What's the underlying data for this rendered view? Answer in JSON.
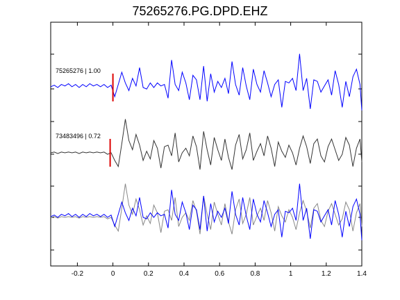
{
  "chart_data": {
    "type": "line",
    "title": "75265276.PG.DPD.EHZ",
    "xlabel": "",
    "ylabel": "",
    "xlim": [
      -0.35,
      1.4
    ],
    "xticks": [
      -0.2,
      0,
      0.2,
      0.4,
      0.6,
      0.8,
      1,
      1.2,
      1.4
    ],
    "xtick_labels": [
      "-0.2",
      "0",
      "0.2",
      "0.4",
      "0.6",
      "0.8",
      "1",
      "1.2",
      "1.4"
    ],
    "pick_time": 0,
    "grid": false,
    "traces": [
      {
        "label": "75265276 | 1.00",
        "color": "#0000ff",
        "x": [
          -0.35,
          -0.33,
          -0.31,
          -0.29,
          -0.27,
          -0.25,
          -0.23,
          -0.21,
          -0.19,
          -0.17,
          -0.15,
          -0.13,
          -0.11,
          -0.09,
          -0.07,
          -0.05,
          -0.03,
          -0.01,
          0.01,
          0.03,
          0.05,
          0.07,
          0.09,
          0.11,
          0.13,
          0.15,
          0.17,
          0.19,
          0.21,
          0.23,
          0.25,
          0.27,
          0.29,
          0.31,
          0.33,
          0.35,
          0.37,
          0.39,
          0.41,
          0.43,
          0.45,
          0.47,
          0.49,
          0.51,
          0.53,
          0.55,
          0.57,
          0.59,
          0.61,
          0.63,
          0.65,
          0.67,
          0.69,
          0.71,
          0.73,
          0.75,
          0.77,
          0.79,
          0.81,
          0.83,
          0.85,
          0.87,
          0.89,
          0.91,
          0.93,
          0.95,
          0.97,
          0.99,
          1.01,
          1.03,
          1.05,
          1.07,
          1.09,
          1.11,
          1.13,
          1.15,
          1.17,
          1.19,
          1.21,
          1.23,
          1.25,
          1.27,
          1.29,
          1.31,
          1.33,
          1.35,
          1.37,
          1.39,
          1.4
        ],
        "y": [
          0.05,
          0.15,
          0.0,
          0.2,
          0.1,
          0.25,
          0.05,
          0.2,
          0.0,
          0.2,
          0.05,
          0.25,
          0.1,
          0.2,
          0.05,
          0.2,
          0.0,
          0.15,
          -0.6,
          0.2,
          1.0,
          0.3,
          -0.2,
          0.6,
          0.1,
          1.3,
          0.0,
          -0.1,
          0.3,
          0.0,
          0.3,
          0.1,
          0.2,
          -0.7,
          1.8,
          0.2,
          -0.2,
          1.0,
          0.3,
          -0.8,
          0.8,
          0.5,
          -0.8,
          1.4,
          -0.9,
          0.9,
          -0.3,
          0.4,
          0.0,
          0.6,
          -0.4,
          1.7,
          0.2,
          -0.5,
          1.3,
          0.1,
          -0.8,
          1.2,
          0.2,
          -0.3,
          1.1,
          0.3,
          -0.6,
          0.2,
          0.5,
          -1.3,
          0.4,
          0.3,
          0.6,
          -0.2,
          2.2,
          -0.2,
          0.6,
          -1.4,
          0.5,
          0.4,
          -0.3,
          0.1,
          0.5,
          -0.5,
          1.1,
          0.2,
          -1.3,
          0.4,
          -0.6,
          0.7,
          1.2,
          0.2,
          -1.5
        ]
      },
      {
        "label": "73483496 | 0.72",
        "color": "#333333",
        "x": [
          -0.35,
          -0.33,
          -0.31,
          -0.29,
          -0.27,
          -0.25,
          -0.23,
          -0.21,
          -0.19,
          -0.17,
          -0.15,
          -0.13,
          -0.11,
          -0.09,
          -0.07,
          -0.05,
          -0.03,
          -0.01,
          0.01,
          0.03,
          0.05,
          0.07,
          0.09,
          0.11,
          0.13,
          0.15,
          0.17,
          0.19,
          0.21,
          0.23,
          0.25,
          0.27,
          0.29,
          0.31,
          0.33,
          0.35,
          0.37,
          0.39,
          0.41,
          0.43,
          0.45,
          0.47,
          0.49,
          0.51,
          0.53,
          0.55,
          0.57,
          0.59,
          0.61,
          0.63,
          0.65,
          0.67,
          0.69,
          0.71,
          0.73,
          0.75,
          0.77,
          0.79,
          0.81,
          0.83,
          0.85,
          0.87,
          0.89,
          0.91,
          0.93,
          0.95,
          0.97,
          0.99,
          1.01,
          1.03,
          1.05,
          1.07,
          1.09,
          1.11,
          1.13,
          1.15,
          1.17,
          1.19,
          1.21,
          1.23,
          1.25,
          1.27,
          1.29,
          1.31,
          1.33,
          1.35,
          1.37,
          1.39,
          1.4
        ],
        "y": [
          0.0,
          0.05,
          -0.05,
          0.05,
          0.0,
          0.05,
          0.0,
          0.05,
          -0.05,
          0.05,
          0.0,
          0.05,
          0.0,
          0.05,
          0.0,
          0.05,
          -0.1,
          0.0,
          -0.5,
          -0.9,
          0.6,
          2.2,
          0.8,
          0.2,
          1.2,
          0.5,
          -0.5,
          0.1,
          -0.4,
          0.8,
          0.3,
          -1.0,
          0.4,
          0.5,
          -0.2,
          1.3,
          -0.6,
          0.0,
          0.3,
          -0.2,
          1.1,
          0.4,
          -1.1,
          1.4,
          0.2,
          -0.8,
          1.0,
          0.2,
          -0.5,
          0.9,
          -0.3,
          -1.1,
          0.5,
          1.2,
          -0.4,
          0.2,
          1.3,
          -0.5,
          0.1,
          0.6,
          -0.2,
          1.1,
          0.3,
          -0.9,
          0.7,
          0.1,
          -0.3,
          0.5,
          0.0,
          -0.8,
          0.3,
          1.1,
          0.4,
          -0.7,
          0.6,
          0.9,
          -0.2,
          -0.6,
          0.4,
          0.9,
          0.2,
          -0.5,
          -0.1,
          1.0,
          0.5,
          -0.9,
          0.3,
          0.9,
          -0.6
        ]
      }
    ]
  }
}
